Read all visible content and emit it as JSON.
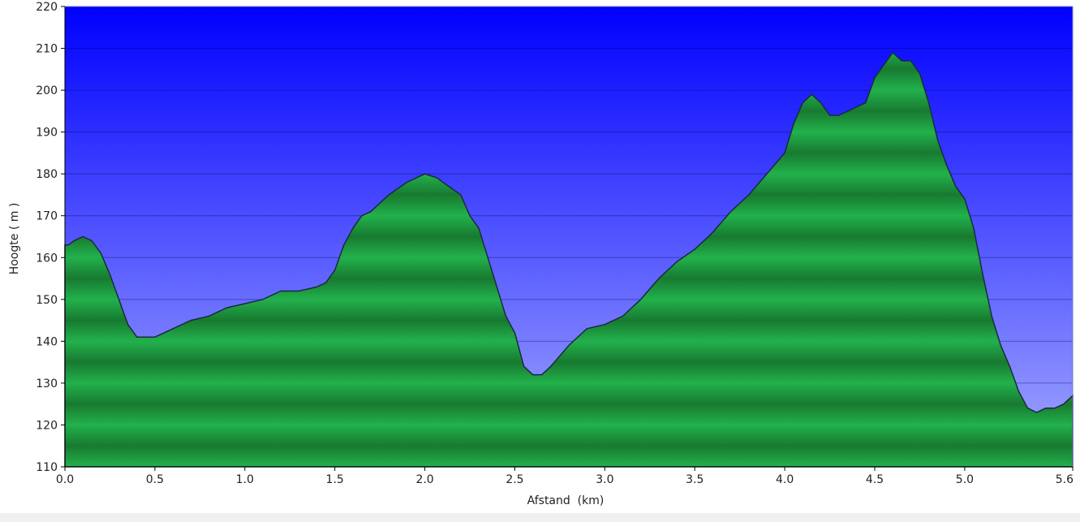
{
  "chart_data": {
    "type": "area",
    "xlabel": "Afstand  (km)",
    "ylabel": "Hoogte ( m )",
    "xlim": [
      0,
      5.6
    ],
    "ylim": [
      110,
      220
    ],
    "x_ticks": [
      "0.0",
      "0.5",
      "1.0",
      "1.5",
      "2.0",
      "2.5",
      "3.0",
      "3.5",
      "4.0",
      "4.5",
      "5.0",
      "5.6"
    ],
    "y_ticks": [
      "110",
      "120",
      "130",
      "140",
      "150",
      "160",
      "170",
      "180",
      "190",
      "200",
      "210",
      "220"
    ],
    "grid": true,
    "colors": {
      "sky_top": "#0000ff",
      "sky_bottom": "#a4aaff",
      "fill_light": "#22b14c",
      "fill_dark": "#187a30",
      "outline": "#1a2a40"
    },
    "series": [
      {
        "x": [
          0.0,
          0.02,
          0.05,
          0.1,
          0.15,
          0.2,
          0.25,
          0.3,
          0.35,
          0.4,
          0.45,
          0.5,
          0.6,
          0.7,
          0.8,
          0.9,
          1.0,
          1.1,
          1.2,
          1.3,
          1.4,
          1.45,
          1.5,
          1.55,
          1.6,
          1.65,
          1.7,
          1.8,
          1.9,
          2.0,
          2.07,
          2.1,
          2.2,
          2.25,
          2.3,
          2.35,
          2.4,
          2.45,
          2.5,
          2.55,
          2.6,
          2.65,
          2.7,
          2.8,
          2.9,
          3.0,
          3.1,
          3.2,
          3.3,
          3.4,
          3.5,
          3.6,
          3.7,
          3.8,
          3.9,
          4.0,
          4.05,
          4.1,
          4.15,
          4.2,
          4.25,
          4.3,
          4.35,
          4.4,
          4.45,
          4.5,
          4.55,
          4.6,
          4.65,
          4.7,
          4.75,
          4.8,
          4.85,
          4.9,
          4.95,
          5.0,
          5.05,
          5.1,
          5.15,
          5.2,
          5.25,
          5.3,
          5.35,
          5.4,
          5.45,
          5.5,
          5.55,
          5.6
        ],
        "values": [
          163,
          163,
          164,
          165,
          164,
          161,
          156,
          150,
          144,
          141,
          141,
          141,
          143,
          145,
          146,
          148,
          149,
          150,
          152,
          152,
          153,
          154,
          157,
          163,
          167,
          170,
          171,
          175,
          178,
          180,
          179,
          178,
          175,
          170,
          167,
          160,
          153,
          146,
          142,
          134,
          132,
          132,
          134,
          139,
          143,
          144,
          146,
          150,
          155,
          159,
          162,
          166,
          171,
          175,
          180,
          185,
          192,
          197,
          199,
          197,
          194,
          194,
          195,
          196,
          197,
          203,
          206,
          209,
          207,
          207,
          204,
          197,
          188,
          182,
          177,
          174,
          167,
          156,
          146,
          139,
          134,
          128,
          124,
          123,
          124,
          124,
          125,
          127
        ]
      }
    ]
  }
}
